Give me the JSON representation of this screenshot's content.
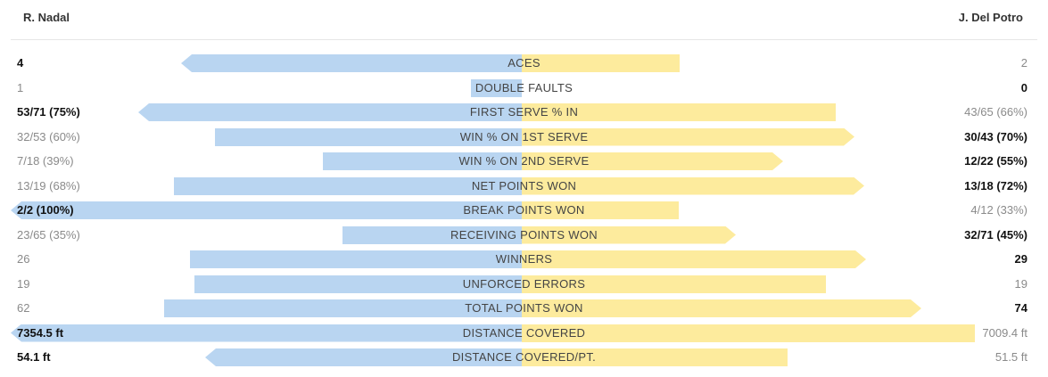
{
  "header": {
    "player_left": "R. Nadal",
    "player_right": "J. Del Potro"
  },
  "colors": {
    "left_bar": "#b9d5f1",
    "right_bar": "#fdeb9d",
    "label_text": "#444444",
    "winner_text": "#111111",
    "loser_text": "#8a8a8a",
    "divider": "#e6e6e6"
  },
  "chart_data": {
    "type": "bar",
    "orientation": "horizontal-diverging",
    "series": [
      {
        "name": "R. Nadal",
        "side": "left"
      },
      {
        "name": "J. Del Potro",
        "side": "right"
      }
    ],
    "categories": [
      "ACES",
      "DOUBLE FAULTS",
      "FIRST SERVE % IN",
      "WIN % ON 1ST SERVE",
      "WIN % ON 2ND SERVE",
      "NET POINTS WON",
      "BREAK POINTS WON",
      "RECEIVING POINTS WON",
      "WINNERS",
      "UNFORCED ERRORS",
      "TOTAL POINTS WON",
      "DISTANCE COVERED",
      "DISTANCE COVERED/PT."
    ],
    "rows": [
      {
        "label": "ACES",
        "left_text": "4",
        "right_text": "2",
        "left_value": 4,
        "right_value": 2,
        "left_share": 0.667,
        "right_share": 0.333,
        "winner": "left"
      },
      {
        "label": "DOUBLE FAULTS",
        "left_text": "1",
        "right_text": "0",
        "left_value": 1,
        "right_value": 0,
        "left_share": 0.1,
        "right_share": 0,
        "winner": "right"
      },
      {
        "label": "FIRST SERVE % IN",
        "left_text": "53/71 (75%)",
        "right_text": "43/65 (66%)",
        "left_value": 75,
        "right_value": 66,
        "left_share": 0.75,
        "right_share": 0.66,
        "winner": "left"
      },
      {
        "label": "WIN % ON 1ST SERVE",
        "left_text": "32/53 (60%)",
        "right_text": "30/43 (70%)",
        "left_value": 60,
        "right_value": 70,
        "left_share": 0.6,
        "right_share": 0.7,
        "winner": "right"
      },
      {
        "label": "WIN % ON 2ND SERVE",
        "left_text": "7/18 (39%)",
        "right_text": "12/22 (55%)",
        "left_value": 39,
        "right_value": 55,
        "left_share": 0.39,
        "right_share": 0.55,
        "winner": "right"
      },
      {
        "label": "NET POINTS WON",
        "left_text": "13/19 (68%)",
        "right_text": "13/18 (72%)",
        "left_value": 68,
        "right_value": 72,
        "left_share": 0.68,
        "right_share": 0.72,
        "winner": "right"
      },
      {
        "label": "BREAK POINTS WON",
        "left_text": "2/2 (100%)",
        "right_text": "4/12 (33%)",
        "left_value": 100,
        "right_value": 33,
        "left_share": 1.0,
        "right_share": 0.33,
        "winner": "left"
      },
      {
        "label": "RECEIVING POINTS WON",
        "left_text": "23/65 (35%)",
        "right_text": "32/71 (45%)",
        "left_value": 35,
        "right_value": 45,
        "left_share": 0.35,
        "right_share": 0.45,
        "winner": "right"
      },
      {
        "label": "WINNERS",
        "left_text": "26",
        "right_text": "29",
        "left_value": 26,
        "right_value": 29,
        "left_share": 0.65,
        "right_share": 0.725,
        "winner": "right"
      },
      {
        "label": "UNFORCED ERRORS",
        "left_text": "19",
        "right_text": "19",
        "left_value": 19,
        "right_value": 19,
        "left_share": 0.64,
        "right_share": 0.64,
        "winner": "none"
      },
      {
        "label": "TOTAL POINTS WON",
        "left_text": "62",
        "right_text": "74",
        "left_value": 62,
        "right_value": 74,
        "left_share": 0.7,
        "right_share": 0.84,
        "winner": "right"
      },
      {
        "label": "DISTANCE COVERED",
        "left_text": "7354.5 ft",
        "right_text": "7009.4 ft",
        "left_value": 7354.5,
        "right_value": 7009.4,
        "left_share": 1.0,
        "right_share": 0.953,
        "winner": "left"
      },
      {
        "label": "DISTANCE COVERED/PT.",
        "left_text": "54.1 ft",
        "right_text": "51.5 ft",
        "left_value": 54.1,
        "right_value": 51.5,
        "left_share": 0.62,
        "right_share": 0.56,
        "winner": "left"
      }
    ]
  }
}
